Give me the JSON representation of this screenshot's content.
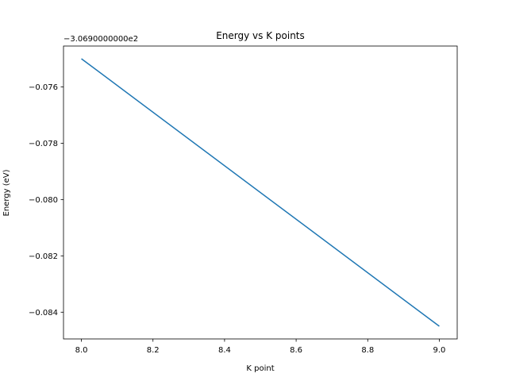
{
  "chart_data": {
    "type": "line",
    "title": "Energy vs K points",
    "xlabel": "K point",
    "ylabel": "Energy (eV)",
    "offset_label": "−3.0690000000e2",
    "x_ticks": [
      "8.0",
      "8.2",
      "8.4",
      "8.6",
      "8.8",
      "9.0"
    ],
    "y_ticks": [
      "−0.084",
      "−0.082",
      "−0.080",
      "−0.078",
      "−0.076"
    ],
    "x_tick_values": [
      8.0,
      8.2,
      8.4,
      8.6,
      8.8,
      9.0
    ],
    "y_tick_values": [
      -0.084,
      -0.082,
      -0.08,
      -0.078,
      -0.076
    ],
    "xlim": [
      7.95,
      9.05
    ],
    "ylim": [
      -0.08495,
      -0.07455
    ],
    "grid": false,
    "series": [
      {
        "color": "#1f77b4",
        "x": [
          8.0,
          9.0
        ],
        "y": [
          -0.075,
          -0.0845
        ]
      }
    ]
  }
}
